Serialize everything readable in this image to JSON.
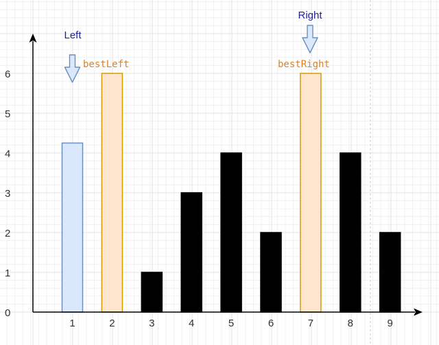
{
  "chart_data": {
    "type": "bar",
    "categories": [
      "1",
      "2",
      "3",
      "4",
      "5",
      "6",
      "7",
      "8",
      "9"
    ],
    "values": [
      4.25,
      6,
      1,
      3,
      4,
      2,
      6,
      4,
      2
    ],
    "bar_styles": [
      "left",
      "best",
      "plain",
      "plain",
      "plain",
      "plain",
      "best",
      "plain",
      "plain"
    ],
    "y_ticks": [
      "0",
      "1",
      "2",
      "3",
      "4",
      "5",
      "6"
    ],
    "ylim": [
      0,
      6.7
    ],
    "grid": true,
    "annotations": {
      "left_label": "Left",
      "best_left_label": "bestLeft",
      "right_label": "Right",
      "best_right_label": "bestRight"
    },
    "colors": {
      "plain": "#000000",
      "left_fill": "#dae8fc",
      "left_stroke": "#6c8ebf",
      "best_fill": "#ffe6cc",
      "best_stroke": "#d79b00",
      "arrow_fill": "#dae8fc",
      "arrow_stroke": "#6c8ebf",
      "label_blue": "#1f1f9e",
      "label_orange": "#d9822b"
    }
  }
}
